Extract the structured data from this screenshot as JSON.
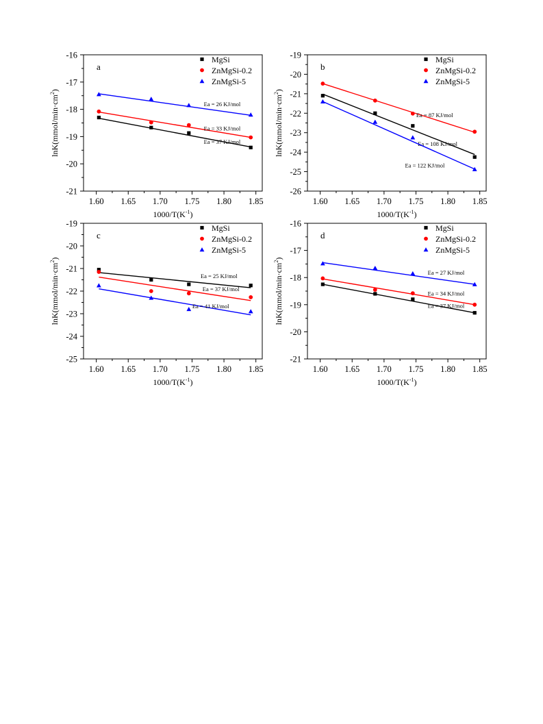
{
  "figure": {
    "xlabel_main": "1000/T(K",
    "xlabel_sup": "-1",
    "xlabel_end": ")",
    "ylabel_main": "lnK(mmol/min·cm",
    "ylabel_sup": "2",
    "ylabel_end": ")"
  },
  "legend": [
    "MgSi",
    "ZnMgSi-0.2",
    "ZnMgSi-5"
  ],
  "colors": {
    "MgSi": "#000000",
    "ZnMgSi-0.2": "#ff0000",
    "ZnMgSi-5": "#0000ff",
    "axis": "#000000"
  },
  "chart_data": [
    {
      "type": "scatter",
      "panel_label": "a",
      "xlim": [
        1.58,
        1.86
      ],
      "ylim": [
        -21,
        -16
      ],
      "xticks": [
        1.6,
        1.65,
        1.7,
        1.75,
        1.8,
        1.85
      ],
      "yticks": [
        -21,
        -20,
        -19,
        -18,
        -17,
        -16
      ],
      "series": [
        {
          "name": "MgSi",
          "marker": "square",
          "x": [
            1.604,
            1.686,
            1.745,
            1.842
          ],
          "y": [
            -18.3,
            -18.67,
            -18.87,
            -19.4
          ],
          "fit": [
            [
              1.604,
              -18.33
            ],
            [
              1.842,
              -19.38
            ]
          ],
          "ea": "Ea = 37 KJ/mol"
        },
        {
          "name": "ZnMgSi-0.2",
          "marker": "circle",
          "x": [
            1.604,
            1.686,
            1.745,
            1.842
          ],
          "y": [
            -18.08,
            -18.48,
            -18.58,
            -19.03
          ],
          "fit": [
            [
              1.604,
              -18.1
            ],
            [
              1.842,
              -19.03
            ]
          ],
          "ea": "Ea = 33 KJ/mol"
        },
        {
          "name": "ZnMgSi-5",
          "marker": "triangle",
          "x": [
            1.604,
            1.686,
            1.745,
            1.842
          ],
          "y": [
            -17.45,
            -17.62,
            -17.85,
            -18.2
          ],
          "fit": [
            [
              1.604,
              -17.43
            ],
            [
              1.842,
              -18.22
            ]
          ],
          "ea": "Ea = 26 KJ/mol"
        }
      ]
    },
    {
      "type": "scatter",
      "panel_label": "b",
      "xlim": [
        1.58,
        1.86
      ],
      "ylim": [
        -26,
        -19
      ],
      "xticks": [
        1.6,
        1.65,
        1.7,
        1.75,
        1.8,
        1.85
      ],
      "yticks": [
        -26,
        -25,
        -24,
        -23,
        -22,
        -21,
        -20,
        -19
      ],
      "series": [
        {
          "name": "MgSi",
          "marker": "square",
          "x": [
            1.604,
            1.686,
            1.745,
            1.842
          ],
          "y": [
            -21.1,
            -22.0,
            -22.65,
            -24.25
          ],
          "fit": [
            [
              1.604,
              -21.02
            ],
            [
              1.842,
              -24.12
            ]
          ],
          "ea": "Ea = 108 KJ/mol"
        },
        {
          "name": "ZnMgSi-0.2",
          "marker": "circle",
          "x": [
            1.604,
            1.686,
            1.745,
            1.842
          ],
          "y": [
            -20.48,
            -21.35,
            -22.02,
            -22.95
          ],
          "fit": [
            [
              1.604,
              -20.48
            ],
            [
              1.842,
              -22.98
            ]
          ],
          "ea": "Ea = 87 KJ/mol"
        },
        {
          "name": "ZnMgSi-5",
          "marker": "triangle",
          "x": [
            1.604,
            1.686,
            1.745,
            1.842
          ],
          "y": [
            -21.4,
            -22.45,
            -23.25,
            -24.88
          ],
          "fit": [
            [
              1.604,
              -21.4
            ],
            [
              1.842,
              -24.87
            ]
          ],
          "ea": "Ea = 122 KJ/mol"
        }
      ]
    },
    {
      "type": "scatter",
      "panel_label": "c",
      "xlim": [
        1.58,
        1.86
      ],
      "ylim": [
        -25,
        -19
      ],
      "xticks": [
        1.6,
        1.65,
        1.7,
        1.75,
        1.8,
        1.85
      ],
      "yticks": [
        -25,
        -24,
        -23,
        -22,
        -21,
        -20,
        -19
      ],
      "series": [
        {
          "name": "MgSi",
          "marker": "square",
          "x": [
            1.604,
            1.686,
            1.745,
            1.842
          ],
          "y": [
            -21.05,
            -21.5,
            -21.7,
            -21.75
          ],
          "fit": [
            [
              1.604,
              -21.18
            ],
            [
              1.842,
              -21.85
            ]
          ],
          "ea": "Ea = 25 KJ/mol"
        },
        {
          "name": "ZnMgSi-0.2",
          "marker": "circle",
          "x": [
            1.604,
            1.686,
            1.745,
            1.842
          ],
          "y": [
            -21.15,
            -22.0,
            -22.1,
            -22.27
          ],
          "fit": [
            [
              1.604,
              -21.38
            ],
            [
              1.842,
              -22.42
            ]
          ],
          "ea": "Ea = 37 KJ/mol"
        },
        {
          "name": "ZnMgSi-5",
          "marker": "triangle",
          "x": [
            1.604,
            1.686,
            1.745,
            1.842
          ],
          "y": [
            -21.75,
            -22.3,
            -22.8,
            -22.9
          ],
          "fit": [
            [
              1.604,
              -21.9
            ],
            [
              1.842,
              -23.05
            ]
          ],
          "ea": "Ea = 41 KJ/mol"
        }
      ]
    },
    {
      "type": "scatter",
      "panel_label": "d",
      "xlim": [
        1.58,
        1.86
      ],
      "ylim": [
        -21,
        -16
      ],
      "xticks": [
        1.6,
        1.65,
        1.7,
        1.75,
        1.8,
        1.85
      ],
      "yticks": [
        -21,
        -20,
        -19,
        -18,
        -17,
        -16
      ],
      "series": [
        {
          "name": "MgSi",
          "marker": "square",
          "x": [
            1.604,
            1.686,
            1.745,
            1.842
          ],
          "y": [
            -18.25,
            -18.6,
            -18.8,
            -19.3
          ],
          "fit": [
            [
              1.604,
              -18.25
            ],
            [
              1.842,
              -19.3
            ]
          ],
          "ea": "Ea = 37 KJ/mol"
        },
        {
          "name": "ZnMgSi-0.2",
          "marker": "circle",
          "x": [
            1.604,
            1.686,
            1.745,
            1.842
          ],
          "y": [
            -18.03,
            -18.45,
            -18.58,
            -19.0
          ],
          "fit": [
            [
              1.604,
              -18.05
            ],
            [
              1.842,
              -19.0
            ]
          ],
          "ea": "Ea = 34 KJ/mol"
        },
        {
          "name": "ZnMgSi-5",
          "marker": "triangle",
          "x": [
            1.604,
            1.686,
            1.745,
            1.842
          ],
          "y": [
            -17.48,
            -17.65,
            -17.85,
            -18.25
          ],
          "fit": [
            [
              1.604,
              -17.45
            ],
            [
              1.842,
              -18.25
            ]
          ],
          "ea": "Ea = 27 KJ/mol"
        }
      ]
    }
  ]
}
